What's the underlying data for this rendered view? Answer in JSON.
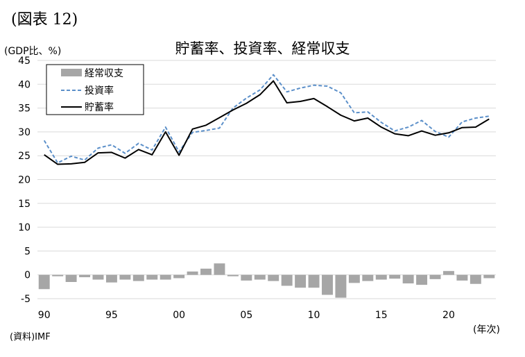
{
  "figure_label": "(図表 12)",
  "unit_label": "(GDP比、%)",
  "source_label": "(資料)IMF",
  "x_unit_label": "(年次)",
  "colors": {
    "current_account": "#a6a6a6",
    "investment": "#5b8fc9",
    "saving": "#000000",
    "grid": "#d9d9d9"
  },
  "chart_data": {
    "type": "line",
    "title": "貯蓄率、投資率、経常収支",
    "xlabel": "",
    "ylabel": "",
    "ylim": [
      -5,
      45
    ],
    "xlim": [
      1990,
      2023
    ],
    "y_ticks": [
      "-5",
      "0",
      "5",
      "10",
      "15",
      "20",
      "25",
      "30",
      "35",
      "40",
      "45"
    ],
    "x_tick_values": [
      1990,
      1995,
      2000,
      2005,
      2010,
      2015,
      2020
    ],
    "x_tick_labels": [
      "90",
      "95",
      "00",
      "05",
      "10",
      "15",
      "20"
    ],
    "grid": true,
    "legend_position": "top-left",
    "x": [
      1990,
      1991,
      1992,
      1993,
      1994,
      1995,
      1996,
      1997,
      1998,
      1999,
      2000,
      2001,
      2002,
      2003,
      2004,
      2005,
      2006,
      2007,
      2008,
      2009,
      2010,
      2011,
      2012,
      2013,
      2014,
      2015,
      2016,
      2017,
      2018,
      2019,
      2020,
      2021,
      2022,
      2023
    ],
    "series": [
      {
        "name": "経常収支",
        "kind": "bar",
        "values": [
          -3.0,
          -0.3,
          -1.5,
          -0.5,
          -1.0,
          -1.6,
          -1.0,
          -1.3,
          -1.0,
          -1.0,
          -0.7,
          0.7,
          1.3,
          2.4,
          -0.3,
          -1.2,
          -1.0,
          -1.3,
          -2.3,
          -2.7,
          -2.7,
          -4.2,
          -4.8,
          -1.7,
          -1.3,
          -1.0,
          -0.8,
          -1.8,
          -2.1,
          -0.9,
          0.8,
          -1.2,
          -1.9,
          -0.7
        ]
      },
      {
        "name": "投資率",
        "kind": "dashed-line",
        "values": [
          28.2,
          23.5,
          24.9,
          24.1,
          26.6,
          27.3,
          25.5,
          27.6,
          26.2,
          31.0,
          25.8,
          29.9,
          30.3,
          30.8,
          35.0,
          37.1,
          38.8,
          42.0,
          38.4,
          39.2,
          39.8,
          39.6,
          38.2,
          34.0,
          34.2,
          32.0,
          30.2,
          31.0,
          32.4,
          30.1,
          28.9,
          32.1,
          32.9,
          33.3
        ]
      },
      {
        "name": "貯蓄率",
        "kind": "line",
        "values": [
          25.2,
          23.2,
          23.3,
          23.6,
          25.6,
          25.7,
          24.5,
          26.3,
          25.2,
          30.0,
          25.1,
          30.6,
          31.4,
          33.0,
          34.6,
          36.0,
          37.8,
          40.7,
          36.1,
          36.4,
          37.0,
          35.3,
          33.5,
          32.3,
          32.9,
          31.0,
          29.6,
          29.2,
          30.2,
          29.3,
          29.8,
          30.9,
          31.0,
          32.7
        ]
      }
    ]
  }
}
